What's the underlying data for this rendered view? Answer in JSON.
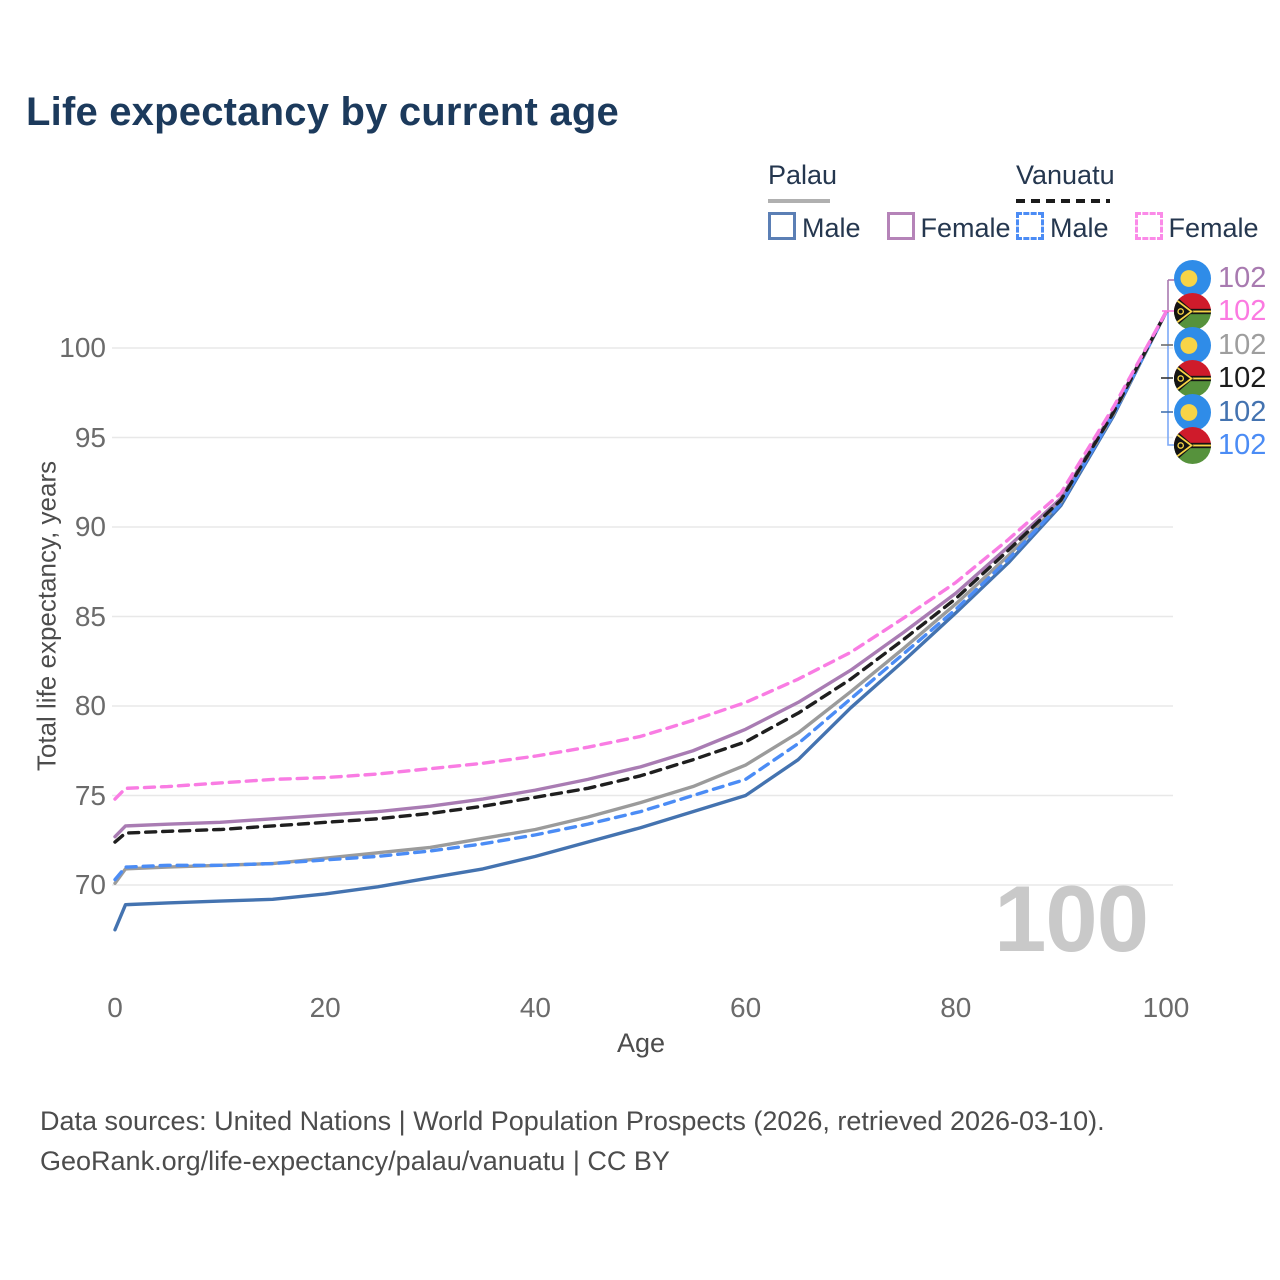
{
  "title": "Life expectancy by current age",
  "legend": {
    "groups": [
      {
        "country": "Palau",
        "line_style": "solid",
        "underline_color": "#b0b0b0",
        "items": [
          {
            "label": "Male",
            "color": "#5b7fb5",
            "dashed": false
          },
          {
            "label": "Female",
            "color": "#b583b8",
            "dashed": false
          }
        ]
      },
      {
        "country": "Vanuatu",
        "line_style": "dashed",
        "underline_color": "#1b1b1b",
        "items": [
          {
            "label": "Male",
            "color": "#4b8cf5",
            "dashed": true
          },
          {
            "label": "Female",
            "color": "#fb8ae8",
            "dashed": true
          }
        ]
      }
    ]
  },
  "axes": {
    "y_title": "Total life expectancy, years",
    "x_title": "Age",
    "y_ticks": [
      100,
      95,
      90,
      85,
      80,
      75,
      70
    ],
    "x_ticks": [
      0,
      20,
      40,
      60,
      80,
      100
    ]
  },
  "watermark_age": "100",
  "end_labels": [
    {
      "value": "102",
      "flag": "palau",
      "color": "#a87ab0"
    },
    {
      "value": "102",
      "flag": "vanuatu",
      "color": "#fb7ae1"
    },
    {
      "value": "102",
      "flag": "palau",
      "color": "#9e9e9e"
    },
    {
      "value": "102",
      "flag": "vanuatu",
      "color": "#1b1b1b"
    },
    {
      "value": "102",
      "flag": "palau",
      "color": "#4473b0"
    },
    {
      "value": "102",
      "flag": "vanuatu",
      "color": "#4b8cf5"
    }
  ],
  "flags": {
    "palau": {
      "bg": "#2f8ce8",
      "moon": "#f7d447"
    },
    "vanuatu": {
      "red": "#cf1b2b",
      "green": "#56923c",
      "black": "#141414",
      "yellow": "#f7d447"
    }
  },
  "footer": {
    "line1": "Data sources: United Nations | World Population Prospects (2026, retrieved 2026-03-10).",
    "line2": "GeoRank.org/life-expectancy/palau/vanuatu | CC BY"
  },
  "chart_data": {
    "type": "line",
    "title": "Life expectancy by current age",
    "xlabel": "Age",
    "ylabel": "Total life expectancy, years",
    "xlim": [
      0,
      100
    ],
    "ylim": [
      66,
      103
    ],
    "grid": true,
    "legend_position": "top-right",
    "x": [
      0,
      1,
      5,
      10,
      15,
      20,
      25,
      30,
      35,
      40,
      45,
      50,
      55,
      60,
      65,
      70,
      75,
      80,
      85,
      90,
      95,
      100
    ],
    "series": [
      {
        "name": "Palau Male",
        "country": "Palau",
        "sex": "male",
        "color": "#4473b0",
        "dashed": false,
        "end_value": 102,
        "values": [
          67.5,
          68.9,
          69.0,
          69.1,
          69.2,
          69.5,
          69.9,
          70.4,
          70.9,
          71.6,
          72.4,
          73.2,
          74.1,
          75.0,
          77.0,
          79.9,
          82.5,
          85.2,
          88.0,
          91.2,
          96.2,
          102
        ]
      },
      {
        "name": "Palau",
        "country": "Palau",
        "sex": "both",
        "color": "#9b9b9b",
        "dashed": false,
        "end_value": 102,
        "values": [
          70.1,
          70.9,
          71.0,
          71.1,
          71.2,
          71.5,
          71.8,
          72.1,
          72.6,
          73.1,
          73.8,
          74.6,
          75.5,
          76.7,
          78.5,
          80.8,
          83.2,
          85.7,
          88.4,
          91.4,
          96.3,
          102
        ]
      },
      {
        "name": "Palau Female",
        "country": "Palau",
        "sex": "female",
        "color": "#a97cb3",
        "dashed": false,
        "end_value": 102,
        "values": [
          72.7,
          73.3,
          73.4,
          73.5,
          73.7,
          73.9,
          74.1,
          74.4,
          74.8,
          75.3,
          75.9,
          76.6,
          77.5,
          78.7,
          80.2,
          82.0,
          84.1,
          86.3,
          88.9,
          91.6,
          96.5,
          102
        ]
      },
      {
        "name": "Vanuatu Male",
        "country": "Vanuatu",
        "sex": "male",
        "color": "#4b8cf5",
        "dashed": true,
        "end_value": 102,
        "values": [
          70.3,
          71.0,
          71.1,
          71.1,
          71.2,
          71.4,
          71.6,
          71.9,
          72.3,
          72.8,
          73.4,
          74.1,
          75.0,
          75.9,
          77.9,
          80.4,
          82.9,
          85.4,
          88.2,
          91.3,
          96.3,
          102
        ]
      },
      {
        "name": "Vanuatu",
        "country": "Vanuatu",
        "sex": "both",
        "color": "#1f1f1f",
        "dashed": true,
        "end_value": 102,
        "values": [
          72.4,
          72.9,
          73.0,
          73.1,
          73.3,
          73.5,
          73.7,
          74.0,
          74.4,
          74.9,
          75.4,
          76.1,
          77.0,
          78.0,
          79.6,
          81.5,
          83.7,
          86.0,
          88.7,
          91.5,
          96.4,
          102
        ]
      },
      {
        "name": "Vanuatu Female",
        "country": "Vanuatu",
        "sex": "female",
        "color": "#f97ce3",
        "dashed": true,
        "end_value": 102,
        "values": [
          74.8,
          75.4,
          75.5,
          75.7,
          75.9,
          76.0,
          76.2,
          76.5,
          76.8,
          77.2,
          77.7,
          78.3,
          79.2,
          80.2,
          81.5,
          83.0,
          84.9,
          86.9,
          89.3,
          91.9,
          96.7,
          102
        ]
      }
    ]
  }
}
